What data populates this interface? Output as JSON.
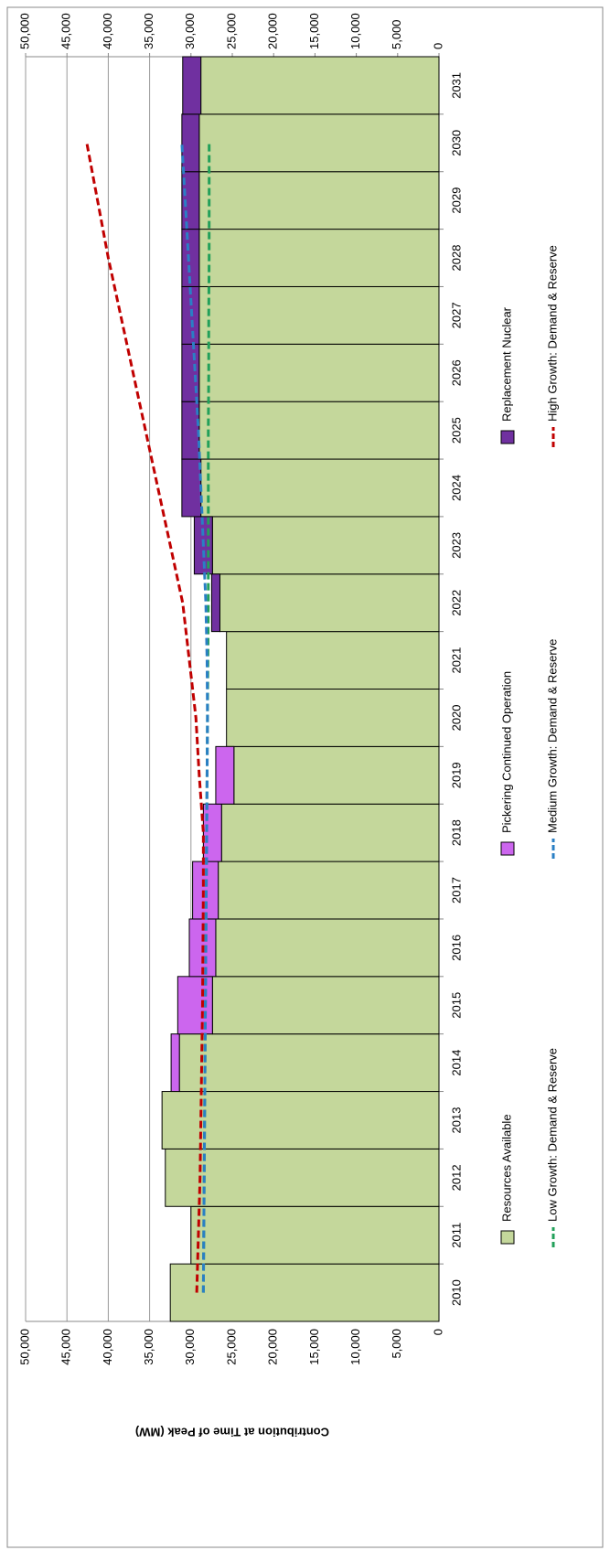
{
  "chart_data": {
    "type": "bar",
    "ylabel": "Contribution at Time of Peak (MW)",
    "categories": [
      "2010",
      "2011",
      "2012",
      "2013",
      "2014",
      "2015",
      "2016",
      "2017",
      "2018",
      "2019",
      "2020",
      "2021",
      "2022",
      "2023",
      "2024",
      "2025",
      "2026",
      "2027",
      "2028",
      "2029",
      "2030",
      "2031"
    ],
    "ylim": [
      0,
      50000
    ],
    "yticks": [
      0,
      {
        "value": 5000,
        "label": "5,000"
      },
      {
        "value": 10000,
        "label": "10,000"
      },
      {
        "value": 15000,
        "label": "15,000"
      },
      {
        "value": 20000,
        "label": "20,000"
      },
      {
        "value": 25000,
        "label": "25,000"
      },
      {
        "value": 30000,
        "label": "30,000"
      },
      {
        "value": 35000,
        "label": "35,000"
      },
      {
        "value": 40000,
        "label": "40,000"
      },
      {
        "value": 45000,
        "label": "45,000"
      },
      {
        "value": 50000,
        "label": "50,000"
      }
    ],
    "y2lim": [
      0,
      50000
    ],
    "y2ticks": [
      0,
      {
        "value": 5000,
        "label": "5,000"
      },
      {
        "value": 10000,
        "label": "10,000"
      },
      {
        "value": 15000,
        "label": "15,000"
      },
      {
        "value": 20000,
        "label": "20,000"
      },
      {
        "value": 25000,
        "label": "25,000"
      },
      {
        "value": 30000,
        "label": "30,000"
      },
      {
        "value": 35000,
        "label": "35,000"
      },
      {
        "value": 40000,
        "label": "40,000"
      },
      {
        "value": 45000,
        "label": "45,000"
      },
      {
        "value": 50000,
        "label": "50,000"
      }
    ],
    "grid": true,
    "stacked": true,
    "legend": "bottom",
    "series": [
      {
        "name": "Resources Available",
        "kind": "bar",
        "color": "#c4d79b",
        "values": [
          32500,
          30000,
          33100,
          33500,
          31400,
          27400,
          27000,
          26700,
          26300,
          24800,
          25700,
          25700,
          26500,
          27400,
          28800,
          29000,
          29000,
          29000,
          29000,
          29000,
          29000,
          28800
        ]
      },
      {
        "name": "Pickering Continued Operation",
        "kind": "bar",
        "color": "#cc66ee",
        "values": [
          null,
          null,
          null,
          null,
          1000,
          4200,
          3200,
          3100,
          2200,
          2200,
          null,
          null,
          null,
          null,
          null,
          null,
          null,
          null,
          null,
          null,
          null,
          null
        ]
      },
      {
        "name": "Replacement Nuclear",
        "kind": "bar",
        "color": "#7030a0",
        "values": [
          null,
          null,
          null,
          null,
          null,
          null,
          null,
          null,
          null,
          null,
          null,
          null,
          1000,
          2200,
          2300,
          2100,
          2100,
          2100,
          2100,
          2100,
          2100,
          2200
        ]
      },
      {
        "name": "Low Growth: Demand & Reserve",
        "kind": "line",
        "color": "#22a05a",
        "values": [
          28500,
          28450,
          28400,
          28350,
          28300,
          28250,
          28200,
          28150,
          28100,
          28050,
          28000,
          27950,
          27900,
          27900,
          27900,
          27900,
          27850,
          27850,
          27800,
          27800,
          27800,
          null
        ]
      },
      {
        "name": "Medium Growth: Demand & Reserve",
        "kind": "line",
        "color": "#2a7fc4",
        "values": [
          28500,
          28450,
          28400,
          28350,
          28300,
          28250,
          28200,
          28150,
          28100,
          28050,
          28000,
          28050,
          28200,
          28500,
          28800,
          29100,
          29500,
          29900,
          30300,
          30700,
          31100,
          null
        ]
      },
      {
        "name": "High Growth: Demand & Reserve",
        "kind": "line",
        "color": "#c00000",
        "values": [
          29300,
          29100,
          28900,
          28800,
          28700,
          28600,
          28550,
          28500,
          28500,
          29000,
          29400,
          30200,
          31000,
          32500,
          34000,
          35500,
          37000,
          38500,
          40000,
          41300,
          42600,
          null
        ]
      }
    ]
  }
}
